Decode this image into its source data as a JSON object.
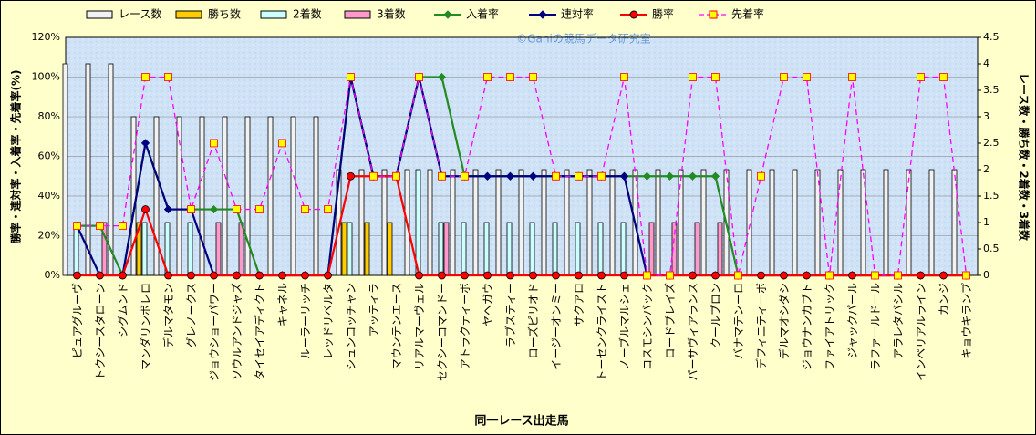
{
  "chart_data": {
    "type": "bar-line",
    "watermark": "©Ganiの競馬データ研究室",
    "x_label": "同一レース出走馬",
    "y_label": "勝率・連対率・入着率・先着率(%)",
    "y2_label": "レース数・勝ち数・2着数・3着数",
    "categories": [
      "ピュアグルーヴ",
      "トクシースタローン",
      "シグムンド",
      "マンダリンボレロ",
      "デルマタモン",
      "グレノークス",
      "ジョウショーパワー",
      "ソウルアンドジャズ",
      "タイセイアディクト",
      "キャネル",
      "ルーラーリッチ",
      "レッドリベルタ",
      "シュンコッチャン",
      "アッティラ",
      "マウンテンエース",
      "リアルマーヴェル",
      "セクシーコマンドー",
      "アトラクティーボ",
      "ヤヘガウ",
      "ラブスティー",
      "ローズピリオド",
      "イージーオンミー",
      "サクアロ",
      "トーセンクライスト",
      "ノーブルマルシェ",
      "コスモシンバック",
      "ロードプレイズ",
      "パーサヴィアランス",
      "クールプロン",
      "バナマテンーロ",
      "デフィニティーボ",
      "デルマオシダシ",
      "ジョウナンカブト",
      "ファイアトリック",
      "ジャックパール",
      "ラファールドール",
      "アラレタバシル",
      "インペリアルライン",
      "カンジ",
      "キョウキランプ"
    ],
    "ylim": [
      0,
      120
    ],
    "yticks": [
      {
        "value": 0,
        "label": "0%"
      },
      {
        "value": 20,
        "label": "20%"
      },
      {
        "value": 40,
        "label": "40%"
      },
      {
        "value": 60,
        "label": "60%"
      },
      {
        "value": 80,
        "label": "80%"
      },
      {
        "value": 100,
        "label": "100%"
      },
      {
        "value": 120,
        "label": "120%"
      }
    ],
    "y2lim": [
      0,
      4.5
    ],
    "y2ticks": [
      0,
      0.5,
      1,
      1.5,
      2,
      2.5,
      3,
      3.5,
      4,
      4.5
    ],
    "grid": true,
    "series": [
      {
        "name": "レース数",
        "kind": "bar",
        "axis": "y2",
        "color": "#f2f2f2",
        "values": [
          4,
          4,
          4,
          3,
          3,
          3,
          3,
          3,
          3,
          3,
          3,
          3,
          2,
          2,
          2,
          2,
          2,
          2,
          2,
          2,
          2,
          2,
          2,
          2,
          2,
          2,
          2,
          2,
          2,
          2,
          2,
          2,
          2,
          2,
          2,
          2,
          2,
          2,
          2,
          2
        ]
      },
      {
        "name": "勝ち数",
        "kind": "bar",
        "axis": "y2",
        "color": "#ffcc00",
        "values": [
          0,
          0,
          0,
          1,
          0,
          0,
          0,
          0,
          0,
          0,
          0,
          0,
          1,
          1,
          1,
          0,
          0,
          0,
          0,
          0,
          0,
          0,
          0,
          0,
          0,
          0,
          0,
          0,
          0,
          0,
          0,
          0,
          0,
          0,
          0,
          0,
          0,
          0,
          0,
          0
        ]
      },
      {
        "name": "2着数",
        "kind": "bar",
        "axis": "y2",
        "color": "#ccffff",
        "values": [
          1,
          0,
          0,
          1,
          1,
          1,
          0,
          0,
          0,
          0,
          0,
          0,
          1,
          0,
          0,
          2,
          1,
          1,
          1,
          1,
          1,
          1,
          1,
          1,
          1,
          0,
          0,
          0,
          0,
          0,
          0,
          0,
          0,
          0,
          0,
          0,
          0,
          0,
          0,
          0
        ]
      },
      {
        "name": "3着数",
        "kind": "bar",
        "axis": "y2",
        "color": "#ff99cc",
        "values": [
          0,
          1,
          0,
          0,
          0,
          0,
          1,
          1,
          0,
          0,
          0,
          0,
          0,
          0,
          0,
          0,
          1,
          0,
          0,
          0,
          0,
          0,
          0,
          0,
          0,
          1,
          1,
          1,
          1,
          0,
          0,
          0,
          0,
          0,
          0,
          0,
          0,
          0,
          0,
          0
        ]
      },
      {
        "name": "入着率",
        "kind": "line",
        "color": "#228b22",
        "marker": "diamond",
        "values": [
          25,
          25,
          0,
          66.7,
          33.3,
          33.3,
          33.3,
          33.3,
          0,
          0,
          0,
          0,
          100,
          50,
          50,
          100,
          100,
          50,
          50,
          50,
          50,
          50,
          50,
          50,
          50,
          50,
          50,
          50,
          50,
          0,
          0,
          0,
          0,
          0,
          0,
          0,
          0,
          0,
          0,
          0
        ]
      },
      {
        "name": "連対率",
        "kind": "line",
        "color": "#000080",
        "marker": "diamond",
        "values": [
          25,
          0,
          0,
          66.7,
          33.3,
          33.3,
          0,
          0,
          0,
          0,
          0,
          0,
          100,
          50,
          50,
          100,
          50,
          50,
          50,
          50,
          50,
          50,
          50,
          50,
          50,
          0,
          0,
          0,
          0,
          0,
          0,
          0,
          0,
          0,
          0,
          0,
          0,
          0,
          0,
          0
        ]
      },
      {
        "name": "勝率",
        "kind": "line",
        "color": "#ff0000",
        "marker": "circle",
        "values": [
          0,
          0,
          0,
          33.3,
          0,
          0,
          0,
          0,
          0,
          0,
          0,
          0,
          50,
          50,
          50,
          0,
          0,
          0,
          0,
          0,
          0,
          0,
          0,
          0,
          0,
          0,
          0,
          0,
          0,
          0,
          0,
          0,
          0,
          0,
          0,
          0,
          0,
          0,
          0,
          0
        ]
      },
      {
        "name": "先着率",
        "kind": "line",
        "color": "#ff00ff",
        "marker": "square",
        "dash": true,
        "values": [
          25,
          25,
          25,
          100,
          100,
          33.3,
          66.7,
          33.3,
          33.3,
          66.7,
          33.3,
          33.3,
          100,
          50,
          50,
          100,
          50,
          50,
          100,
          100,
          100,
          50,
          50,
          50,
          100,
          0,
          0,
          100,
          100,
          0,
          50,
          100,
          100,
          0,
          100,
          0,
          0,
          100,
          100,
          0
        ]
      }
    ]
  }
}
